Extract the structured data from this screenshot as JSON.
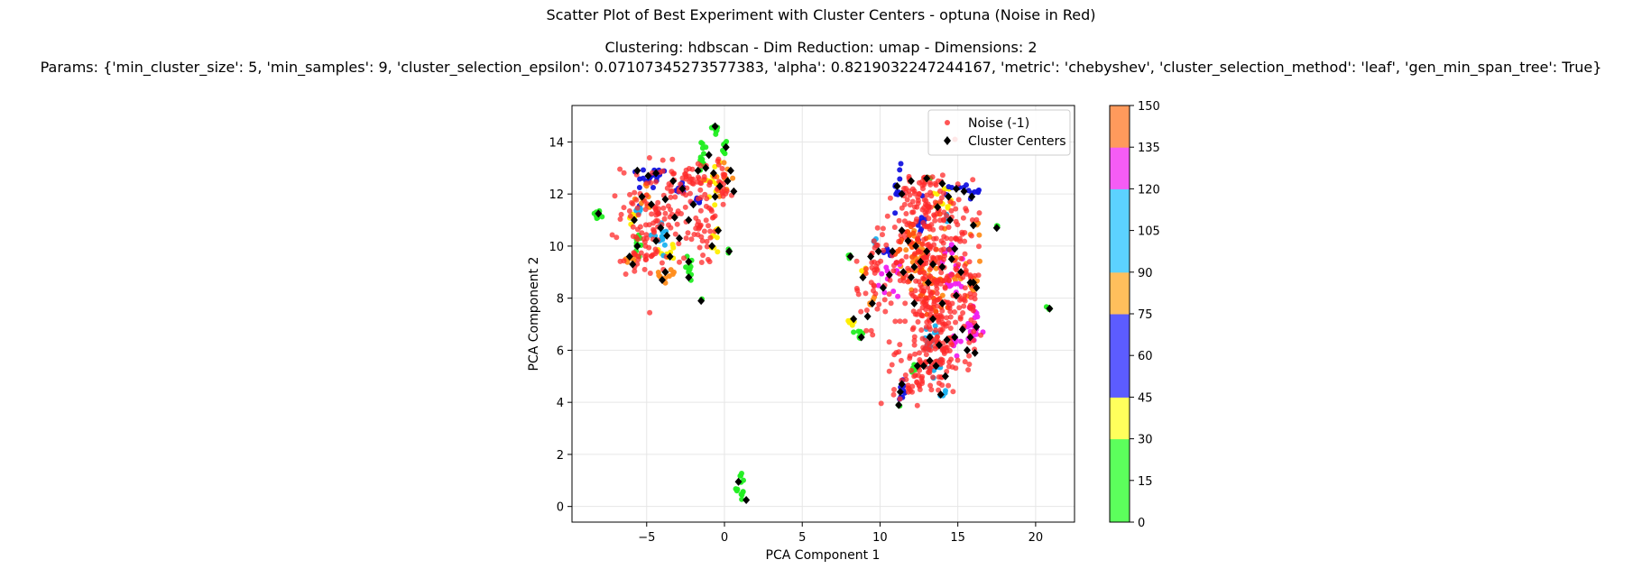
{
  "chart_data": {
    "type": "scatter",
    "title": "Scatter Plot of Best Experiment with Cluster Centers - optuna (Noise in Red)",
    "subtitle_line1": "Clustering: hdbscan - Dim Reduction: umap - Dimensions: 2",
    "subtitle_line2": "Params: {'min_cluster_size': 5, 'min_samples': 9, 'cluster_selection_epsilon': 0.07107345273577383, 'alpha': 0.8219032247244167, 'metric': 'chebyshev', 'cluster_selection_method': 'leaf', 'gen_min_span_tree': True}",
    "xlabel": "PCA Component 1",
    "ylabel": "PCA Component 2",
    "xlim": [
      -9.8,
      22.5
    ],
    "ylim": [
      -0.6,
      15.4
    ],
    "xticks": [
      -5,
      0,
      5,
      10,
      15,
      20
    ],
    "yticks": [
      0,
      2,
      4,
      6,
      8,
      10,
      12,
      14
    ],
    "grid": true,
    "legend": {
      "placement": "top-right",
      "entries": [
        {
          "label": "Noise (-1)",
          "marker": "circle",
          "color": "#ff2a2a"
        },
        {
          "label": "Cluster Centers",
          "marker": "diamond",
          "color": "#000000"
        }
      ]
    },
    "colorbar": {
      "ticks": [
        0,
        15,
        30,
        45,
        60,
        75,
        90,
        105,
        120,
        135,
        150
      ],
      "bands": [
        {
          "from": 0,
          "to": 15,
          "color": "#5cff5c"
        },
        {
          "from": 15,
          "to": 30,
          "color": "#5cff5c"
        },
        {
          "from": 30,
          "to": 45,
          "color": "#ffff5c"
        },
        {
          "from": 45,
          "to": 60,
          "color": "#5c5cff"
        },
        {
          "from": 60,
          "to": 75,
          "color": "#5c5cff"
        },
        {
          "from": 75,
          "to": 90,
          "color": "#ffbf5c"
        },
        {
          "from": 90,
          "to": 105,
          "color": "#5cd2ff"
        },
        {
          "from": 105,
          "to": 120,
          "color": "#5cd2ff"
        },
        {
          "from": 120,
          "to": 135,
          "color": "#f55cf5"
        },
        {
          "from": 135,
          "to": 150,
          "color": "#ff9a5c"
        }
      ]
    },
    "cluster_colors": {
      "green": "#22ee22",
      "yellow": "#ffee00",
      "blue": "#1414e0",
      "orange": "#ff8c1a",
      "cyan": "#1ab2f0",
      "magenta": "#f020f0",
      "red_orange": "#ff5010",
      "noise": "#ff2a2a",
      "center": "#000000"
    },
    "cluster_groups": [
      {
        "color": "green",
        "x": -8.2,
        "y": 11.2,
        "sx": 0.12,
        "sy": 0.1,
        "n": 14
      },
      {
        "color": "green",
        "x": -0.6,
        "y": 14.5,
        "sx": 0.12,
        "sy": 0.12,
        "n": 10
      },
      {
        "color": "green",
        "x": -1.4,
        "y": 13.4,
        "sx": 0.18,
        "sy": 0.4,
        "n": 12
      },
      {
        "color": "green",
        "x": 0.0,
        "y": 13.8,
        "sx": 0.08,
        "sy": 0.15,
        "n": 6
      },
      {
        "color": "green",
        "x": -5.5,
        "y": 10.0,
        "sx": 0.12,
        "sy": 0.25,
        "n": 10
      },
      {
        "color": "green",
        "x": -2.2,
        "y": 9.2,
        "sx": 0.15,
        "sy": 0.3,
        "n": 10
      },
      {
        "color": "green",
        "x": 0.3,
        "y": 9.8,
        "sx": 0.06,
        "sy": 0.06,
        "n": 4
      },
      {
        "color": "green",
        "x": -1.5,
        "y": 7.95,
        "sx": 0.04,
        "sy": 0.04,
        "n": 3
      },
      {
        "color": "green",
        "x": 1.0,
        "y": 0.8,
        "sx": 0.15,
        "sy": 0.3,
        "n": 14
      },
      {
        "color": "green",
        "x": 20.9,
        "y": 7.62,
        "sx": 0.08,
        "sy": 0.04,
        "n": 5
      },
      {
        "color": "green",
        "x": 17.5,
        "y": 10.75,
        "sx": 0.04,
        "sy": 0.04,
        "n": 3
      },
      {
        "color": "green",
        "x": 8.7,
        "y": 6.6,
        "sx": 0.1,
        "sy": 0.2,
        "n": 8
      },
      {
        "color": "green",
        "x": 8.0,
        "y": 9.6,
        "sx": 0.08,
        "sy": 0.06,
        "n": 4
      },
      {
        "color": "green",
        "x": 11.2,
        "y": 3.9,
        "sx": 0.06,
        "sy": 0.08,
        "n": 4
      },
      {
        "color": "green",
        "x": 12.2,
        "y": 5.3,
        "sx": 0.12,
        "sy": 0.1,
        "n": 5
      },
      {
        "color": "green",
        "x": 13.0,
        "y": 12.6,
        "sx": 0.1,
        "sy": 0.06,
        "n": 4
      },
      {
        "color": "yellow",
        "x": -5.8,
        "y": 11.1,
        "sx": 0.2,
        "sy": 0.15,
        "n": 8
      },
      {
        "color": "yellow",
        "x": -0.8,
        "y": 12.4,
        "sx": 0.35,
        "sy": 0.6,
        "n": 14
      },
      {
        "color": "yellow",
        "x": -0.6,
        "y": 10.3,
        "sx": 0.2,
        "sy": 0.3,
        "n": 8
      },
      {
        "color": "yellow",
        "x": -3.5,
        "y": 9.8,
        "sx": 0.35,
        "sy": 0.2,
        "n": 8
      },
      {
        "color": "yellow",
        "x": 14.0,
        "y": 11.7,
        "sx": 0.4,
        "sy": 0.35,
        "n": 14
      },
      {
        "color": "yellow",
        "x": 8.2,
        "y": 7.1,
        "sx": 0.15,
        "sy": 0.1,
        "n": 6
      },
      {
        "color": "yellow",
        "x": 9.0,
        "y": 9.0,
        "sx": 0.15,
        "sy": 0.1,
        "n": 5
      },
      {
        "color": "blue",
        "x": -5.0,
        "y": 12.6,
        "sx": 0.3,
        "sy": 0.25,
        "n": 14
      },
      {
        "color": "blue",
        "x": -4.2,
        "y": 12.7,
        "sx": 0.2,
        "sy": 0.15,
        "n": 8
      },
      {
        "color": "blue",
        "x": -2.8,
        "y": 12.2,
        "sx": 0.2,
        "sy": 0.15,
        "n": 8
      },
      {
        "color": "blue",
        "x": -1.8,
        "y": 11.7,
        "sx": 0.15,
        "sy": 0.1,
        "n": 6
      },
      {
        "color": "blue",
        "x": 11.2,
        "y": 12.2,
        "sx": 0.15,
        "sy": 0.4,
        "n": 12
      },
      {
        "color": "blue",
        "x": 12.6,
        "y": 11.0,
        "sx": 0.2,
        "sy": 0.4,
        "n": 10
      },
      {
        "color": "blue",
        "x": 15.5,
        "y": 12.1,
        "sx": 0.5,
        "sy": 0.15,
        "n": 14
      },
      {
        "color": "blue",
        "x": 11.3,
        "y": 4.4,
        "sx": 0.12,
        "sy": 0.2,
        "n": 8
      },
      {
        "color": "blue",
        "x": 10.5,
        "y": 9.8,
        "sx": 0.15,
        "sy": 0.15,
        "n": 6
      },
      {
        "color": "blue",
        "x": 14.6,
        "y": 9.9,
        "sx": 0.15,
        "sy": 0.1,
        "n": 5
      },
      {
        "color": "orange",
        "x": -6.0,
        "y": 9.5,
        "sx": 0.2,
        "sy": 0.15,
        "n": 8
      },
      {
        "color": "orange",
        "x": -3.6,
        "y": 8.9,
        "sx": 0.3,
        "sy": 0.2,
        "n": 10
      },
      {
        "color": "orange",
        "x": -5.0,
        "y": 11.8,
        "sx": 0.3,
        "sy": 0.3,
        "n": 10
      },
      {
        "color": "orange",
        "x": -0.1,
        "y": 12.6,
        "sx": 0.3,
        "sy": 0.3,
        "n": 10
      },
      {
        "color": "orange",
        "x": 12.8,
        "y": 9.5,
        "sx": 0.7,
        "sy": 0.6,
        "n": 40
      },
      {
        "color": "orange",
        "x": 15.0,
        "y": 9.0,
        "sx": 0.6,
        "sy": 0.5,
        "n": 16
      },
      {
        "color": "orange",
        "x": 16.0,
        "y": 8.5,
        "sx": 0.2,
        "sy": 0.2,
        "n": 6
      },
      {
        "color": "orange",
        "x": 16.1,
        "y": 10.6,
        "sx": 0.15,
        "sy": 0.2,
        "n": 6
      },
      {
        "color": "orange",
        "x": 9.5,
        "y": 7.8,
        "sx": 0.2,
        "sy": 0.15,
        "n": 6
      },
      {
        "color": "cyan",
        "x": -4.2,
        "y": 10.5,
        "sx": 0.3,
        "sy": 0.3,
        "n": 16
      },
      {
        "color": "cyan",
        "x": -5.5,
        "y": 11.3,
        "sx": 0.15,
        "sy": 0.1,
        "n": 5
      },
      {
        "color": "cyan",
        "x": 13.2,
        "y": 6.4,
        "sx": 0.3,
        "sy": 0.3,
        "n": 14
      },
      {
        "color": "cyan",
        "x": 13.6,
        "y": 5.4,
        "sx": 0.2,
        "sy": 0.2,
        "n": 8
      },
      {
        "color": "cyan",
        "x": 14.1,
        "y": 4.3,
        "sx": 0.1,
        "sy": 0.12,
        "n": 5
      },
      {
        "color": "cyan",
        "x": 9.7,
        "y": 10.0,
        "sx": 0.15,
        "sy": 0.15,
        "n": 5
      },
      {
        "color": "cyan",
        "x": 14.4,
        "y": 11.2,
        "sx": 0.1,
        "sy": 0.1,
        "n": 4
      },
      {
        "color": "magenta",
        "x": 10.6,
        "y": 8.7,
        "sx": 0.3,
        "sy": 0.3,
        "n": 14
      },
      {
        "color": "magenta",
        "x": 14.8,
        "y": 9.0,
        "sx": 0.5,
        "sy": 0.5,
        "n": 18
      },
      {
        "color": "magenta",
        "x": 16.0,
        "y": 6.8,
        "sx": 0.35,
        "sy": 0.45,
        "n": 20
      },
      {
        "color": "magenta",
        "x": 15.0,
        "y": 6.2,
        "sx": 0.25,
        "sy": 0.25,
        "n": 8
      },
      {
        "color": "red_orange",
        "x": 12.0,
        "y": 10.2,
        "sx": 0.5,
        "sy": 0.5,
        "n": 24
      },
      {
        "color": "red_orange",
        "x": 13.5,
        "y": 8.2,
        "sx": 0.5,
        "sy": 0.5,
        "n": 24
      }
    ],
    "noise_groups": [
      {
        "x": -4.2,
        "y": 11.3,
        "sx": 1.2,
        "sy": 1.0,
        "n": 120
      },
      {
        "x": -2.2,
        "y": 12.3,
        "sx": 0.5,
        "sy": 0.5,
        "n": 30
      },
      {
        "x": -1.3,
        "y": 10.7,
        "sx": 0.5,
        "sy": 0.8,
        "n": 30
      },
      {
        "x": -0.2,
        "y": 12.4,
        "sx": 0.35,
        "sy": 0.5,
        "n": 22
      },
      {
        "x": -5.3,
        "y": 9.6,
        "sx": 0.5,
        "sy": 0.35,
        "n": 20
      },
      {
        "x": 13.0,
        "y": 9.3,
        "sx": 1.1,
        "sy": 1.4,
        "n": 200
      },
      {
        "x": 13.4,
        "y": 6.1,
        "sx": 0.9,
        "sy": 0.9,
        "n": 120
      },
      {
        "x": 12.8,
        "y": 11.9,
        "sx": 0.8,
        "sy": 0.45,
        "n": 60
      },
      {
        "x": 15.5,
        "y": 7.8,
        "sx": 0.6,
        "sy": 1.1,
        "n": 60
      },
      {
        "x": 9.6,
        "y": 8.4,
        "sx": 0.6,
        "sy": 0.8,
        "n": 30
      },
      {
        "x": 12.0,
        "y": 4.8,
        "sx": 0.6,
        "sy": 0.4,
        "n": 30
      },
      {
        "x": 15.2,
        "y": 11.0,
        "sx": 0.7,
        "sy": 0.6,
        "n": 30
      },
      {
        "x": 9.8,
        "y": 10.1,
        "sx": 0.4,
        "sy": 0.4,
        "n": 14
      }
    ],
    "cluster_centers": [
      [
        -8.1,
        11.25
      ],
      [
        -5.6,
        12.9
      ],
      [
        -4.9,
        12.7
      ],
      [
        -4.4,
        12.8
      ],
      [
        -5.3,
        11.9
      ],
      [
        -4.7,
        11.6
      ],
      [
        -5.8,
        11.0
      ],
      [
        -4.1,
        10.7
      ],
      [
        -4.4,
        10.2
      ],
      [
        -3.7,
        10.4
      ],
      [
        -3.2,
        11.1
      ],
      [
        -2.9,
        10.3
      ],
      [
        -3.5,
        9.6
      ],
      [
        -3.8,
        9.0
      ],
      [
        -4.0,
        8.7
      ],
      [
        -5.6,
        10.0
      ],
      [
        -6.1,
        9.6
      ],
      [
        -5.9,
        9.3
      ],
      [
        -2.7,
        12.2
      ],
      [
        -2.0,
        11.6
      ],
      [
        -1.7,
        12.9
      ],
      [
        -1.2,
        13.0
      ],
      [
        -0.7,
        12.8
      ],
      [
        -0.6,
        11.9
      ],
      [
        -0.3,
        12.3
      ],
      [
        0.2,
        12.5
      ],
      [
        0.4,
        12.9
      ],
      [
        0.6,
        12.1
      ],
      [
        -0.6,
        14.6
      ],
      [
        0.1,
        13.8
      ],
      [
        -1.0,
        13.5
      ],
      [
        -0.4,
        10.6
      ],
      [
        -0.8,
        10.0
      ],
      [
        0.3,
        9.8
      ],
      [
        -2.3,
        9.4
      ],
      [
        -1.5,
        7.9
      ],
      [
        -2.3,
        8.8
      ],
      [
        -3.3,
        12.5
      ],
      [
        -3.8,
        11.8
      ],
      [
        -2.3,
        11.0
      ],
      [
        0.9,
        0.95
      ],
      [
        1.4,
        0.25
      ],
      [
        20.9,
        7.6
      ],
      [
        17.5,
        10.7
      ],
      [
        11.1,
        12.3
      ],
      [
        11.4,
        12.0
      ],
      [
        12.0,
        12.5
      ],
      [
        13.0,
        12.6
      ],
      [
        14.0,
        12.4
      ],
      [
        14.4,
        11.9
      ],
      [
        14.9,
        12.2
      ],
      [
        15.4,
        12.1
      ],
      [
        15.9,
        11.9
      ],
      [
        13.7,
        11.5
      ],
      [
        14.5,
        11.0
      ],
      [
        16.0,
        10.8
      ],
      [
        11.4,
        10.6
      ],
      [
        11.8,
        10.2
      ],
      [
        12.3,
        10.0
      ],
      [
        12.6,
        9.4
      ],
      [
        13.0,
        9.8
      ],
      [
        13.4,
        9.3
      ],
      [
        12.2,
        9.2
      ],
      [
        11.5,
        9.0
      ],
      [
        12.0,
        8.8
      ],
      [
        13.1,
        8.6
      ],
      [
        14.0,
        9.2
      ],
      [
        14.6,
        9.5
      ],
      [
        15.2,
        9.0
      ],
      [
        15.8,
        8.6
      ],
      [
        16.2,
        8.4
      ],
      [
        14.9,
        8.1
      ],
      [
        14.0,
        7.8
      ],
      [
        13.4,
        7.2
      ],
      [
        12.2,
        7.8
      ],
      [
        10.6,
        8.9
      ],
      [
        10.2,
        8.4
      ],
      [
        9.4,
        9.6
      ],
      [
        9.9,
        9.8
      ],
      [
        8.9,
        8.8
      ],
      [
        8.1,
        9.6
      ],
      [
        8.3,
        7.2
      ],
      [
        8.8,
        6.5
      ],
      [
        9.2,
        7.3
      ],
      [
        9.5,
        7.8
      ],
      [
        10.8,
        9.8
      ],
      [
        13.2,
        6.5
      ],
      [
        13.8,
        6.2
      ],
      [
        14.3,
        6.4
      ],
      [
        14.8,
        6.5
      ],
      [
        15.3,
        6.8
      ],
      [
        15.8,
        6.5
      ],
      [
        16.2,
        6.9
      ],
      [
        15.6,
        6.0
      ],
      [
        16.1,
        5.9
      ],
      [
        13.2,
        5.6
      ],
      [
        13.6,
        5.4
      ],
      [
        12.8,
        5.4
      ],
      [
        14.2,
        5.0
      ],
      [
        13.9,
        4.3
      ],
      [
        11.3,
        4.4
      ],
      [
        11.4,
        4.7
      ],
      [
        11.2,
        3.9
      ],
      [
        14.8,
        9.9
      ],
      [
        16.0,
        8.6
      ],
      [
        12.4,
        5.4
      ]
    ]
  }
}
